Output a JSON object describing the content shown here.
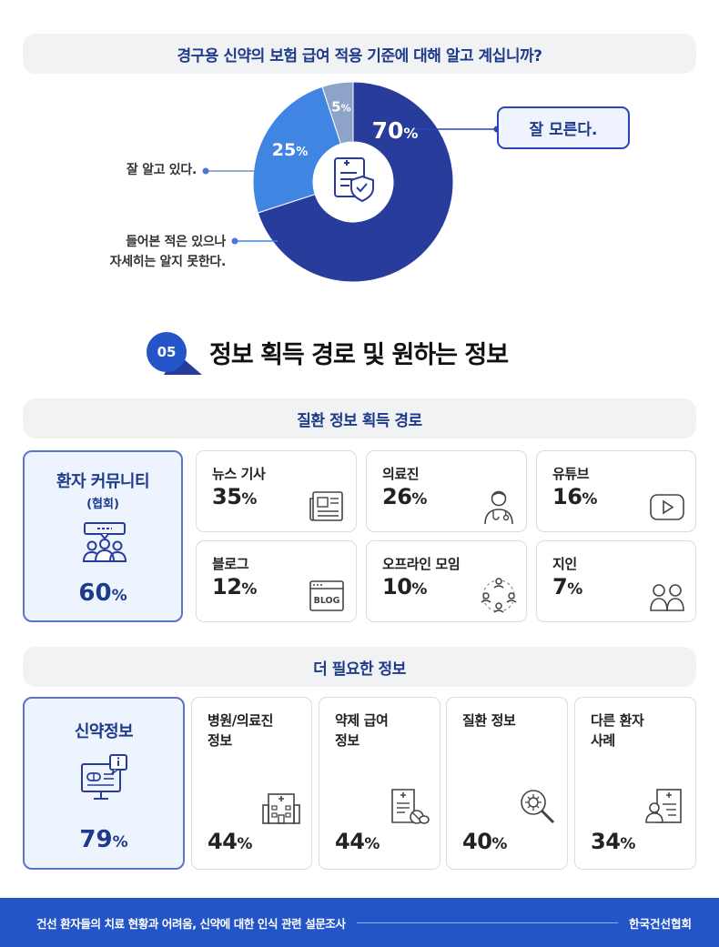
{
  "question": "경구용 신약의 보험 급여 적용 기준에 대해 알고 계십니까?",
  "chart_data": [
    {
      "type": "pie",
      "title": "경구용 신약의 보험 급여 적용 기준에 대해 알고 계십니까?",
      "slices": [
        {
          "label": "잘 모른다.",
          "value": 70,
          "color": "#283c9c"
        },
        {
          "label": "들어본 적은 있으나 자세히는 알지 못한다.",
          "value": 25,
          "color": "#4185e2"
        },
        {
          "label": "잘 알고 있다.",
          "value": 5,
          "color": "#8ea3c8"
        }
      ],
      "unit": "%"
    },
    {
      "type": "table",
      "title": "질환 정보 획득 경로",
      "categories": [
        "환자 커뮤니티 (협회)",
        "뉴스 기사",
        "의료진",
        "유튜브",
        "블로그",
        "오프라인 모임",
        "지인"
      ],
      "values": [
        60,
        35,
        26,
        16,
        12,
        10,
        7
      ],
      "unit": "%"
    },
    {
      "type": "table",
      "title": "더 필요한 정보",
      "categories": [
        "신약정보",
        "병원/의료진 정보",
        "약제 급여 정보",
        "질환 정보",
        "다른 환자 사례"
      ],
      "values": [
        79,
        44,
        44,
        40,
        34
      ],
      "unit": "%"
    }
  ],
  "pie_labels": {
    "know_well": "잘 알고 있다.",
    "heard_line1": "들어본 적은 있으나",
    "heard_line2": "자세히는 알지 못한다.",
    "dont_know": "잘 모른다."
  },
  "section": {
    "number": "05",
    "title": "정보 획득 경로 및 원하는 정보"
  },
  "channels": {
    "title": "질환 정보 획득 경로",
    "highlight": {
      "title": "환자 커뮤니티",
      "subtitle": "(협회)",
      "value": "60",
      "unit": "%"
    },
    "items": [
      {
        "label": "뉴스 기사",
        "value": "35",
        "unit": "%",
        "icon": "newspaper-icon"
      },
      {
        "label": "의료진",
        "value": "26",
        "unit": "%",
        "icon": "doctor-icon"
      },
      {
        "label": "유튜브",
        "value": "16",
        "unit": "%",
        "icon": "play-button-icon"
      },
      {
        "label": "블로그",
        "value": "12",
        "unit": "%",
        "icon": "blog-window-icon"
      },
      {
        "label": "오프라인 모임",
        "value": "10",
        "unit": "%",
        "icon": "people-circle-icon"
      },
      {
        "label": "지인",
        "value": "7",
        "unit": "%",
        "icon": "two-people-icon"
      }
    ]
  },
  "needs": {
    "title": "더 필요한 정보",
    "highlight": {
      "title": "신약정보",
      "value": "79",
      "unit": "%"
    },
    "items": [
      {
        "line1": "병원/의료진",
        "line2": "정보",
        "value": "44",
        "unit": "%",
        "icon": "hospital-icon"
      },
      {
        "line1": "약제 급여",
        "line2": "정보",
        "value": "44",
        "unit": "%",
        "icon": "document-pill-icon"
      },
      {
        "line1": "질환 정보",
        "line2": "",
        "value": "40",
        "unit": "%",
        "icon": "virus-magnifier-icon"
      },
      {
        "line1": "다른 환자",
        "line2": "사례",
        "value": "34",
        "unit": "%",
        "icon": "patient-record-icon"
      }
    ]
  },
  "glyphs": {
    "blog": "BLOG"
  },
  "colors": {
    "navy": "#283c9c",
    "blue": "#4185e2",
    "grey_blue": "#8ea3c8",
    "accent": "#1e3a8a",
    "footer": "#2355c8"
  },
  "footer": {
    "left": "건선 환자들의 치료 현황과 어려움, 신약에 대한 인식 관련 설문조사",
    "right": "한국건선협회"
  }
}
